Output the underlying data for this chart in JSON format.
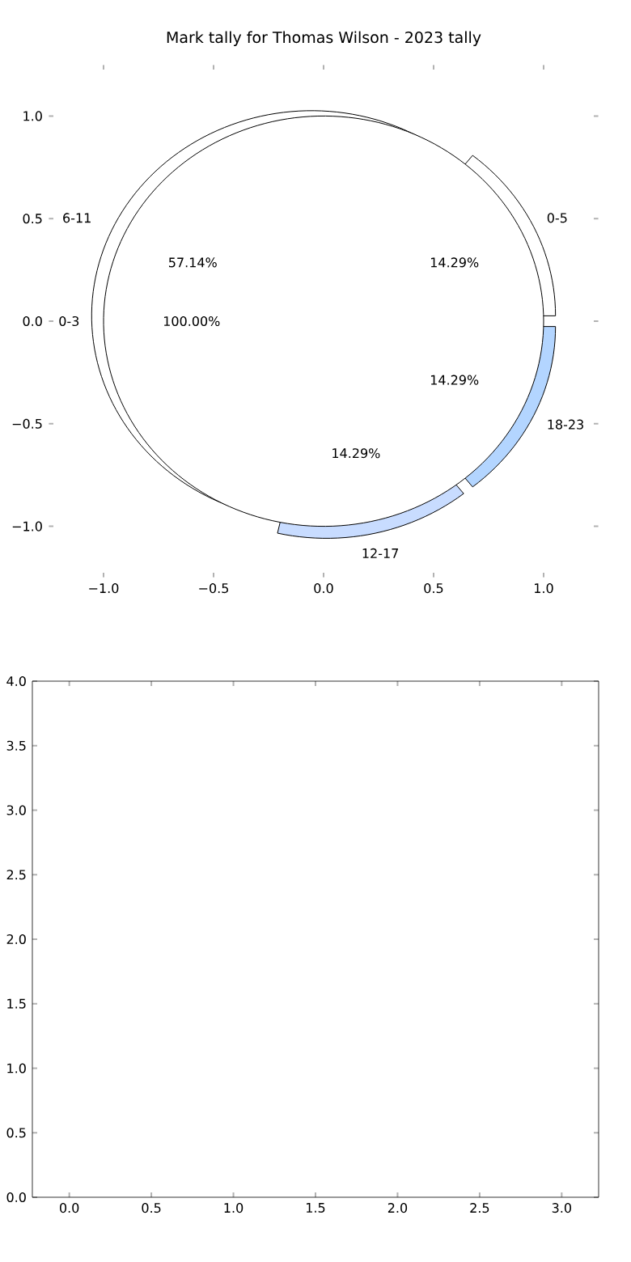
{
  "chart_data": [
    {
      "type": "pie",
      "title": "Mark tally for Thomas Wilson - 2023 tally",
      "categories": [
        "0-5",
        "6-11",
        "12-17",
        "18-23"
      ],
      "values": [
        14.29,
        57.14,
        14.29,
        14.29
      ],
      "colors": [
        "#ffffff",
        "#ffffff",
        "#c8dcff",
        "#b3d5ff"
      ],
      "value_labels": [
        "14.29%",
        "57.14%",
        "14.29%",
        "14.29%"
      ]
    },
    {
      "type": "pie",
      "categories": [
        "0-3"
      ],
      "values": [
        100
      ],
      "colors": [
        "#ffffff"
      ],
      "value_labels": [
        "100.00%"
      ]
    },
    {
      "type": "scatter",
      "xlim": [
        -1.25,
        1.25
      ],
      "ylim": [
        -1.25,
        1.25
      ],
      "xticks": [
        {
          "value": -1,
          "label": "−1.0"
        },
        {
          "value": -0.5,
          "label": "−0.5"
        },
        {
          "value": 0,
          "label": "0.0"
        },
        {
          "value": 0.5,
          "label": "0.5"
        },
        {
          "value": 1,
          "label": "1.0"
        }
      ],
      "yticks": [
        {
          "value": -1,
          "label": "−1.0"
        },
        {
          "value": -0.5,
          "label": "−0.5"
        },
        {
          "value": 0,
          "label": "0.0"
        },
        {
          "value": 0.5,
          "label": "0.5"
        },
        {
          "value": 1,
          "label": "1.0"
        }
      ]
    },
    {
      "type": "scatter",
      "xlim": [
        -0.225,
        3.225
      ],
      "ylim": [
        0,
        4
      ],
      "xticks": [
        {
          "value": 0,
          "label": "0.0"
        },
        {
          "value": 0.5,
          "label": "0.5"
        },
        {
          "value": 1,
          "label": "1.0"
        },
        {
          "value": 1.5,
          "label": "1.5"
        },
        {
          "value": 2,
          "label": "2.0"
        },
        {
          "value": 2.5,
          "label": "2.5"
        },
        {
          "value": 3,
          "label": "3.0"
        }
      ],
      "yticks": [
        {
          "value": 0,
          "label": "0.0"
        },
        {
          "value": 0.5,
          "label": "0.5"
        },
        {
          "value": 1,
          "label": "1.0"
        },
        {
          "value": 1.5,
          "label": "1.5"
        },
        {
          "value": 2,
          "label": "2.0"
        },
        {
          "value": 2.5,
          "label": "2.5"
        },
        {
          "value": 3,
          "label": "3.0"
        },
        {
          "value": 3.5,
          "label": "3.5"
        },
        {
          "value": 4,
          "label": "4.0"
        }
      ]
    }
  ]
}
